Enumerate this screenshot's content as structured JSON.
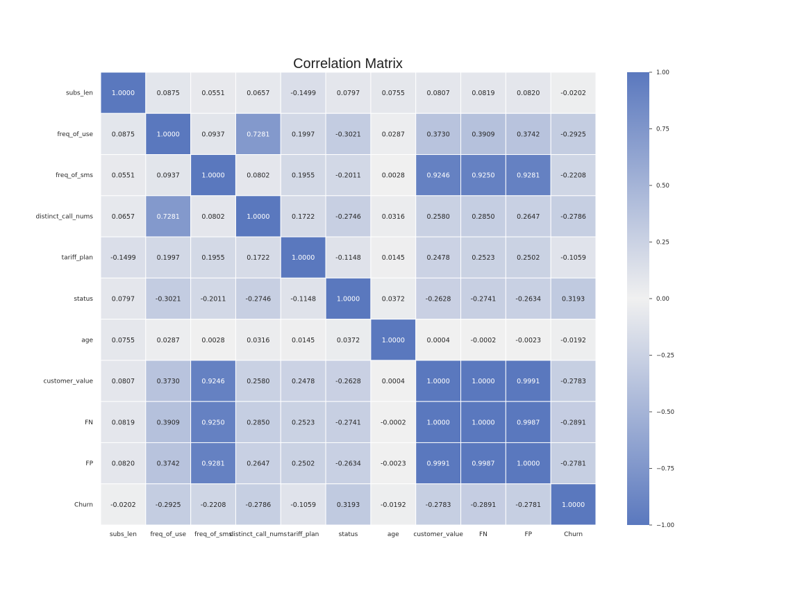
{
  "chart_data": {
    "type": "heatmap",
    "title": "Correlation Matrix",
    "labels": [
      "subs_len",
      "freq_of_use",
      "freq_of_sms",
      "distinct_call_nums",
      "tariff_plan",
      "status",
      "age",
      "customer_value",
      "FN",
      "FP",
      "Churn"
    ],
    "values": [
      [
        1.0,
        0.0875,
        0.0551,
        0.0657,
        -0.1499,
        0.0797,
        0.0755,
        0.0807,
        0.0819,
        0.082,
        -0.0202
      ],
      [
        0.0875,
        1.0,
        0.0937,
        0.7281,
        0.1997,
        -0.3021,
        0.0287,
        0.373,
        0.3909,
        0.3742,
        -0.2925
      ],
      [
        0.0551,
        0.0937,
        1.0,
        0.0802,
        0.1955,
        -0.2011,
        0.0028,
        0.9246,
        0.925,
        0.9281,
        -0.2208
      ],
      [
        0.0657,
        0.7281,
        0.0802,
        1.0,
        0.1722,
        -0.2746,
        0.0316,
        0.258,
        0.285,
        0.2647,
        -0.2786
      ],
      [
        -0.1499,
        0.1997,
        0.1955,
        0.1722,
        1.0,
        -0.1148,
        0.0145,
        0.2478,
        0.2523,
        0.2502,
        -0.1059
      ],
      [
        0.0797,
        -0.3021,
        -0.2011,
        -0.2746,
        -0.1148,
        1.0,
        0.0372,
        -0.2628,
        -0.2741,
        -0.2634,
        0.3193
      ],
      [
        0.0755,
        0.0287,
        0.0028,
        0.0316,
        0.0145,
        0.0372,
        1.0,
        0.0004,
        -0.0002,
        -0.0023,
        -0.0192
      ],
      [
        0.0807,
        0.373,
        0.9246,
        0.258,
        0.2478,
        -0.2628,
        0.0004,
        1.0,
        1.0,
        0.9991,
        -0.2783
      ],
      [
        0.0819,
        0.3909,
        0.925,
        0.285,
        0.2523,
        -0.2741,
        -0.0002,
        1.0,
        1.0,
        0.9987,
        -0.2891
      ],
      [
        0.082,
        0.3742,
        0.9281,
        0.2647,
        0.2502,
        -0.2634,
        -0.0023,
        0.9991,
        0.9987,
        1.0,
        -0.2781
      ],
      [
        -0.0202,
        -0.2925,
        -0.2208,
        -0.2786,
        -0.1059,
        0.3193,
        -0.0192,
        -0.2783,
        -0.2891,
        -0.2781,
        1.0
      ]
    ],
    "value_format": "0.0000",
    "vmin": -1.0,
    "vmax": 1.0,
    "colorbar_ticks": [
      "1.00",
      "0.75",
      "0.50",
      "0.25",
      "0.00",
      "−0.25",
      "−0.50",
      "−0.75",
      "−1.00"
    ],
    "colormap": {
      "low": "#5a78be",
      "mid": "#f0f0f0",
      "high": "#5a78be",
      "note_free": "diverging, symmetric"
    },
    "cell_border_color": "#ffffff"
  }
}
